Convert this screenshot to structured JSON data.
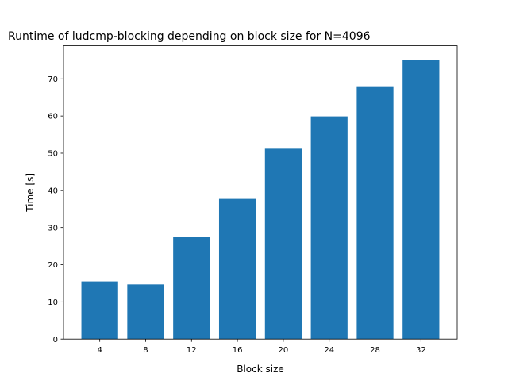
{
  "chart_data": {
    "type": "bar",
    "title": "Runtime of ludcmp-blocking depending on block size for N=4096",
    "xlabel": "Block size",
    "ylabel": "Time [s]",
    "categories": [
      "4",
      "8",
      "12",
      "16",
      "20",
      "24",
      "28",
      "32"
    ],
    "values": [
      15.5,
      14.7,
      27.5,
      37.7,
      51.2,
      59.9,
      68.0,
      75.1
    ],
    "ylim": [
      0,
      78.9
    ],
    "yticks": [
      0,
      10,
      20,
      30,
      40,
      50,
      60,
      70
    ],
    "grid": false,
    "bar_color": "#1f77b4"
  }
}
